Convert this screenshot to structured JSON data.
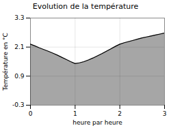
{
  "chart_data": {
    "type": "area",
    "title": "Evolution de la température",
    "xlabel": "heure par heure",
    "ylabel": "Température en °C",
    "x": [
      0.0,
      0.1,
      0.2,
      0.3,
      0.4,
      0.5,
      0.6,
      0.7,
      0.8,
      0.9,
      1.0,
      1.1,
      1.2,
      1.3,
      1.4,
      1.5,
      1.6,
      1.7,
      1.8,
      1.9,
      2.0,
      2.1,
      2.2,
      2.3,
      2.4,
      2.5,
      2.6,
      2.7,
      2.8,
      2.9,
      3.0
    ],
    "values": [
      2.22,
      2.15,
      2.07,
      2.0,
      1.93,
      1.85,
      1.77,
      1.68,
      1.59,
      1.5,
      1.42,
      1.45,
      1.5,
      1.57,
      1.65,
      1.74,
      1.83,
      1.93,
      2.03,
      2.13,
      2.22,
      2.28,
      2.33,
      2.38,
      2.43,
      2.48,
      2.52,
      2.56,
      2.6,
      2.64,
      2.68
    ],
    "xlim": [
      0,
      3
    ],
    "ylim": [
      -0.3,
      3.3
    ],
    "xticks": [
      0,
      1,
      2,
      3
    ],
    "yticks": [
      -0.3,
      0.9,
      2.1,
      3.3
    ],
    "grid": true
  }
}
